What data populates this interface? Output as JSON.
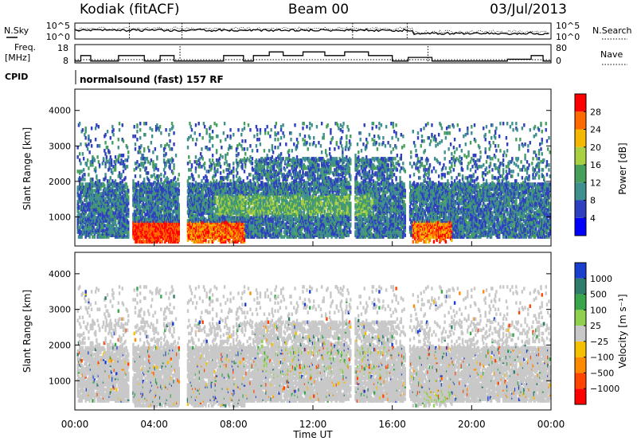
{
  "header": {
    "station": "Kodiak (fitACF)",
    "beam": "Beam 00",
    "date": "03/Jul/2013"
  },
  "top_panels": {
    "nsky_label": "N.Sky",
    "nsearch_label": "N.Search",
    "nsky_ticks": [
      "10^5",
      "10^0"
    ],
    "nsearch_ticks": [
      "10^5",
      "10^0"
    ],
    "freq_label_1": "Freq.",
    "freq_label_2": "[MHz]",
    "freq_ticks": [
      "18",
      "8"
    ],
    "nave_label": "Nave",
    "nave_ticks": [
      "80",
      "0"
    ],
    "cpid_label": "CPID",
    "cpid_text": "normalsound (fast) 157 RF"
  },
  "chart_data": [
    {
      "type": "heatmap",
      "name": "power",
      "ylabel": "Slant Range [km]",
      "ylim": [
        180,
        4600
      ],
      "yticks": [
        1000,
        2000,
        3000,
        4000
      ],
      "xlim": [
        0,
        24
      ],
      "colorbar_label": "Power [dB]",
      "colorbar_ticks": [
        "28",
        "24",
        "20",
        "16",
        "12",
        "8",
        "4"
      ],
      "colorbar_colors": [
        "#0000ff",
        "#2e3fbf",
        "#3f8f8f",
        "#46a05a",
        "#a8d040",
        "#f5b800",
        "#ff6a00",
        "#ff0000"
      ]
    },
    {
      "type": "heatmap",
      "name": "velocity",
      "ylabel": "Slant Range [km]",
      "ylim": [
        180,
        4600
      ],
      "yticks": [
        1000,
        2000,
        3000,
        4000
      ],
      "xlim": [
        0,
        24
      ],
      "xlabel": "Time UT",
      "xticks": [
        "00:00",
        "04:00",
        "08:00",
        "12:00",
        "16:00",
        "20:00",
        "00:00"
      ],
      "colorbar_label": "Velocity [m s⁻¹]",
      "colorbar_ticks": [
        "1000",
        "500",
        "100",
        "25",
        "−25",
        "−100",
        "−500",
        "−1000"
      ],
      "colorbar_colors": [
        "#1a3fcf",
        "#2e7d6a",
        "#3aa64b",
        "#8fd14f",
        "#c8c8c8",
        "#f5c000",
        "#ff8a00",
        "#ff4500",
        "#ff0000"
      ]
    }
  ],
  "colors": {
    "axis": "#000000",
    "scatter_gray": "#c8c8c8"
  }
}
